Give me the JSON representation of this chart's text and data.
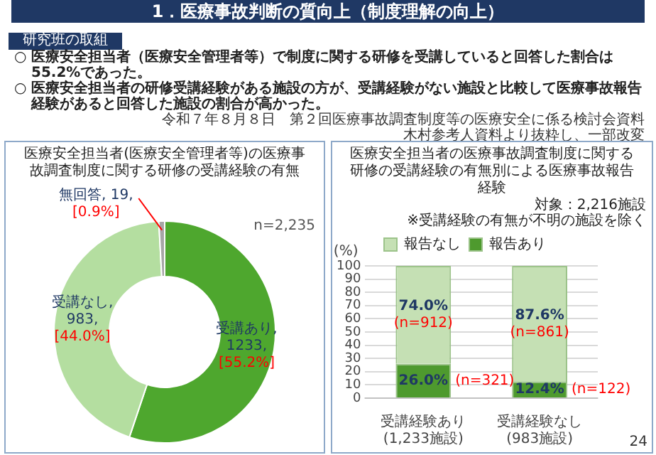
{
  "chart_data": [
    {
      "type": "other",
      "title": "1．医療事故判断の質向上（制度理解の向上）",
      "subtitle": "研究班の取組",
      "annotations": [
        "○ 医療安全担当者（医療安全管理者等）で制度に関する研修を受講していると回答した割合は55.2%であった。",
        "○ 医療安全担当者の研修受講経験がある施設の方が、受講経験がない施設と比較して医療事故報告経験があると回答した施設の割合が高かった。",
        "令和７年８月８日　第２回医療事故調査制度等の医療安全に係る検討会資料",
        "木村参考人資料より抜粋し、一部改変"
      ]
    },
    {
      "type": "donut",
      "title": "医療安全担当者(医療安全管理者等)の医療事故調査制度に関する研修の受講経験の有無",
      "categories": [
        "受講あり",
        "受講なし",
        "無回答"
      ],
      "values": [
        1233,
        983,
        19
      ],
      "colors": [
        "#4ea72e",
        "#b4dea0",
        "#a6a6a6"
      ],
      "value_labels": [
        ",\n1233,\n[55.2%]",
        ",\n983,\n[44.0%]",
        ", 19,\n[0.9%]"
      ],
      "legend": false,
      "annotations": [
        "n=2,235"
      ]
    },
    {
      "type": "bar",
      "stacked": true,
      "title": "医療安全担当者の医療事故調査制度に関する研修の受講経験の有無別による医療事故報告経験",
      "subtitle": "対象：2,216施設\n※受講経験の有無が不明の施設を除く",
      "ylabel": "(%)",
      "categories": [
        "受講経験あり\n(1,233施設)",
        "受講経験なし\n(983施設)"
      ],
      "series": [
        {
          "name": "報告あり",
          "color": "#4e9a2e",
          "values": [
            26.0,
            12.4
          ],
          "value_labels": [
            "26.0%\n(n=321)",
            "12.4%\n(n=122)"
          ]
        },
        {
          "name": "報告なし",
          "color": "#c5e0b4",
          "values": [
            74.0,
            87.6
          ],
          "value_labels": [
            "74.0%\n(n=912)",
            "87.6%\n(n=861)"
          ]
        }
      ],
      "ylim": [
        0,
        100
      ],
      "yticks": [
        0,
        10,
        20,
        30,
        40,
        50,
        60,
        70,
        80,
        90,
        100
      ],
      "grid": "y",
      "legend": "top",
      "annotations": [
        "24"
      ]
    }
  ]
}
